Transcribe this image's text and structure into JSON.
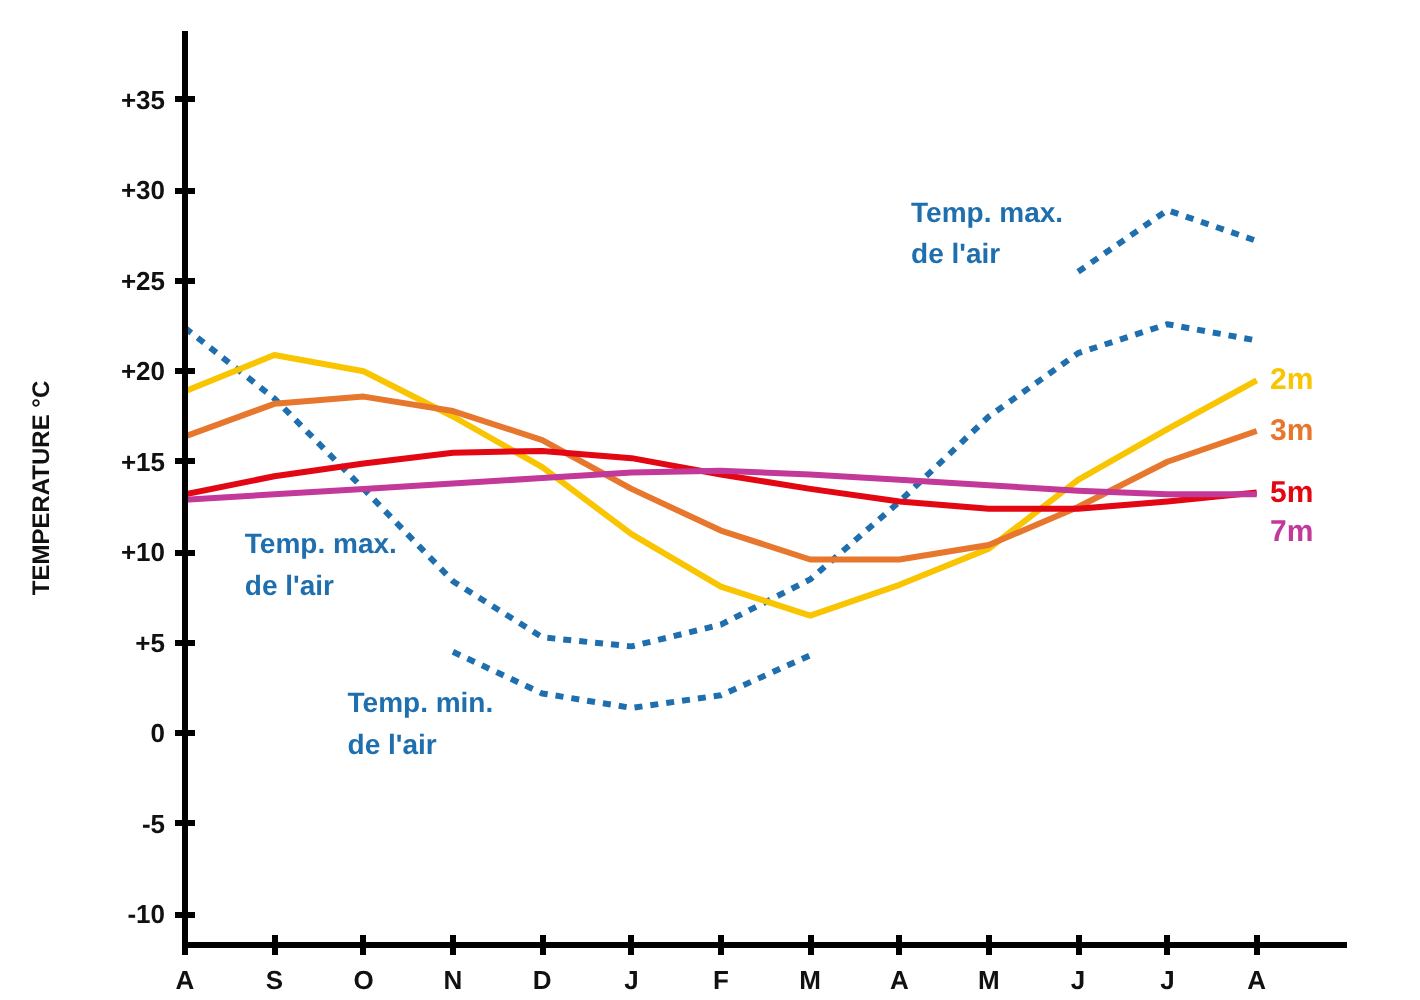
{
  "chart_data": {
    "type": "line",
    "ylabel": "TEMPERATURE °C",
    "ylim": [
      -11.7,
      38.8
    ],
    "categories": [
      "A",
      "S",
      "O",
      "N",
      "D",
      "J",
      "F",
      "M",
      "A",
      "M",
      "J",
      "J",
      "A"
    ],
    "yticks": [
      {
        "value": 35,
        "label": "+35"
      },
      {
        "value": 30,
        "label": "+30"
      },
      {
        "value": 25,
        "label": "+25"
      },
      {
        "value": 20,
        "label": "+20"
      },
      {
        "value": 15,
        "label": "+15"
      },
      {
        "value": 10,
        "label": "+10"
      },
      {
        "value": 5,
        "label": "+5"
      },
      0,
      -5,
      -10
    ],
    "grid": false,
    "series": [
      {
        "name": "Temp. max. de l'air",
        "color": "#1f6fae",
        "line_style": "dashed",
        "values": [
          22.4,
          18.5,
          13.5,
          8.4,
          5.3,
          4.8,
          6.0,
          8.5,
          12.8,
          17.5,
          21.0,
          22.6,
          21.7
        ]
      },
      {
        "name": "Temp. min. de l'air",
        "color": "#1f6fae",
        "line_style": "dashed",
        "values": [
          null,
          null,
          null,
          4.5,
          2.2,
          1.4,
          2.1,
          4.3,
          null,
          null,
          null,
          null,
          null
        ]
      },
      {
        "name": "Temp. max. de l'air",
        "color": "#1f6fae",
        "line_style": "dashed",
        "values": [
          null,
          null,
          null,
          null,
          null,
          null,
          null,
          null,
          null,
          null,
          25.5,
          28.9,
          27.2
        ]
      },
      {
        "name": "2m",
        "color": "#f9c400",
        "values": [
          18.9,
          20.9,
          20.0,
          17.5,
          14.7,
          11.0,
          8.1,
          6.5,
          8.2,
          10.2,
          14.0,
          16.8,
          19.5
        ]
      },
      {
        "name": "3m",
        "color": "#e8772e",
        "values": [
          16.4,
          18.2,
          18.6,
          17.8,
          16.2,
          13.5,
          11.2,
          9.6,
          9.6,
          10.4,
          12.5,
          15.0,
          16.7
        ]
      },
      {
        "name": "5m",
        "color": "#e30613",
        "values": [
          13.2,
          14.2,
          14.9,
          15.5,
          15.6,
          15.2,
          14.3,
          13.5,
          12.8,
          12.4,
          12.4,
          12.8,
          13.3
        ]
      },
      {
        "name": "7m",
        "color": "#c2399a",
        "values": [
          12.9,
          13.2,
          13.5,
          13.8,
          14.1,
          14.4,
          14.5,
          14.3,
          14.0,
          13.7,
          13.4,
          13.2,
          13.2
        ]
      }
    ]
  }
}
